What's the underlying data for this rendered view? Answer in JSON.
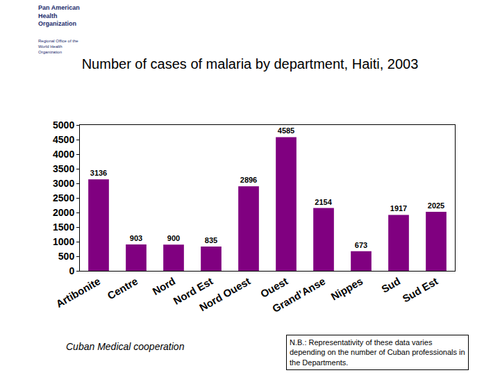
{
  "chart_data": {
    "type": "bar",
    "title": "Number of cases of malaria by department, Haiti, 2003",
    "categories": [
      "Artibonite",
      "Centre",
      "Nord",
      "Nord Est",
      "Nord Ouest",
      "Ouest",
      "Grand’Anse",
      "Nippes",
      "Sud",
      "Sud Est"
    ],
    "values": [
      3136,
      903,
      900,
      835,
      2896,
      4585,
      2154,
      673,
      1917,
      2025
    ],
    "color": "#800080",
    "ylim": [
      0,
      5000
    ],
    "yticks": [
      0,
      500,
      1000,
      1500,
      2000,
      2500,
      3000,
      3500,
      4000,
      4500,
      5000
    ],
    "grid": false,
    "data_labels": true,
    "annotations": [
      "Pan American Health Organization",
      "Regional Office of the World Health Organization",
      "Cuban Medical cooperation",
      "N.B.: Representativity of these data varies depending on the number of Cuban professionals in the Departments."
    ]
  }
}
